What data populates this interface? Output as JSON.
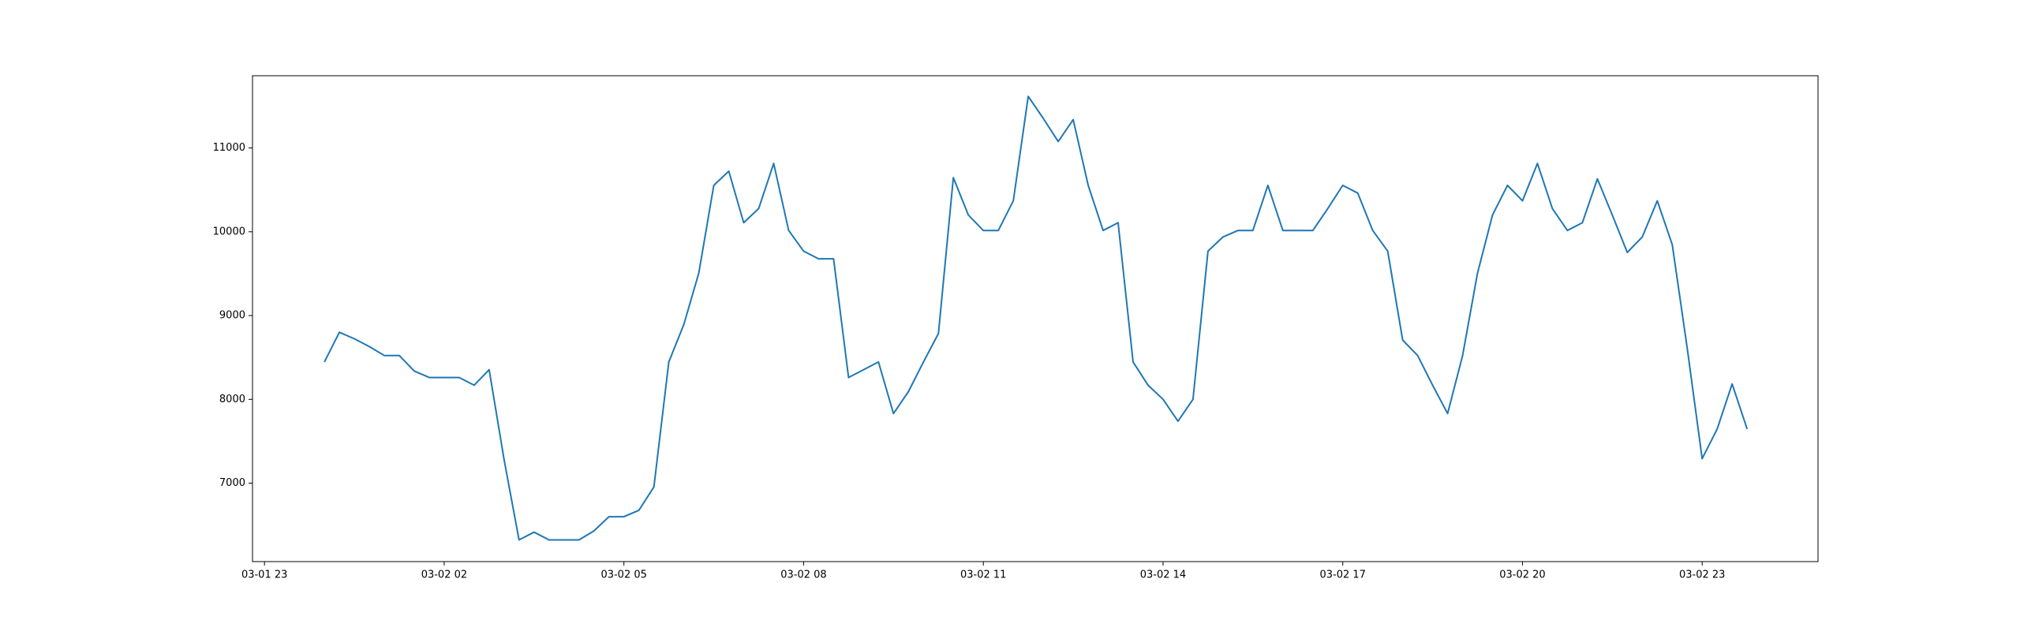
{
  "chart_data": {
    "type": "line",
    "x": [
      "03-02 00:00",
      "03-02 00:15",
      "03-02 00:30",
      "03-02 00:45",
      "03-02 01:00",
      "03-02 01:15",
      "03-02 01:30",
      "03-02 01:45",
      "03-02 02:00",
      "03-02 02:15",
      "03-02 02:30",
      "03-02 02:45",
      "03-02 03:00",
      "03-02 03:15",
      "03-02 03:30",
      "03-02 03:45",
      "03-02 04:00",
      "03-02 04:15",
      "03-02 04:30",
      "03-02 04:45",
      "03-02 05:00",
      "03-02 05:15",
      "03-02 05:30",
      "03-02 05:45",
      "03-02 06:00",
      "03-02 06:15",
      "03-02 06:30",
      "03-02 06:45",
      "03-02 07:00",
      "03-02 07:15",
      "03-02 07:30",
      "03-02 07:45",
      "03-02 08:00",
      "03-02 08:15",
      "03-02 08:30",
      "03-02 08:45",
      "03-02 09:00",
      "03-02 09:15",
      "03-02 09:30",
      "03-02 09:45",
      "03-02 10:00",
      "03-02 10:15",
      "03-02 10:30",
      "03-02 10:45",
      "03-02 11:00",
      "03-02 11:15",
      "03-02 11:30",
      "03-02 11:45",
      "03-02 12:00",
      "03-02 12:15",
      "03-02 12:30",
      "03-02 12:45",
      "03-02 13:00",
      "03-02 13:15",
      "03-02 13:30",
      "03-02 13:45",
      "03-02 14:00",
      "03-02 14:15",
      "03-02 14:30",
      "03-02 14:45",
      "03-02 15:00",
      "03-02 15:15",
      "03-02 15:30",
      "03-02 15:45",
      "03-02 16:00",
      "03-02 16:15",
      "03-02 16:30",
      "03-02 16:45",
      "03-02 17:00",
      "03-02 17:15",
      "03-02 17:30",
      "03-02 17:45",
      "03-02 18:00",
      "03-02 18:15",
      "03-02 18:30",
      "03-02 18:45",
      "03-02 19:00",
      "03-02 19:15",
      "03-02 19:30",
      "03-02 19:45",
      "03-02 20:00",
      "03-02 20:15",
      "03-02 20:30",
      "03-02 20:45",
      "03-02 21:00",
      "03-02 21:15",
      "03-02 21:30",
      "03-02 21:45",
      "03-02 22:00",
      "03-02 22:15",
      "03-02 22:30",
      "03-02 22:45",
      "03-02 23:00",
      "03-02 23:15",
      "03-02 23:30",
      "03-02 23:45"
    ],
    "series": [
      {
        "color": "#1f77b4",
        "values": [
          8446,
          8800,
          8723,
          8630,
          8523,
          8523,
          8338,
          8261,
          8261,
          8261,
          8169,
          8354,
          7277,
          6323,
          6415,
          6323,
          6323,
          6323,
          6430,
          6600,
          6600,
          6677,
          6954,
          8446,
          8892,
          9507,
          10554,
          10723,
          10108,
          10277,
          10815,
          10015,
          9769,
          9677,
          9677,
          8261,
          8354,
          8446,
          7831,
          8092,
          8446,
          8785,
          10646,
          10200,
          10015,
          10015,
          10369,
          11615,
          11354,
          11077,
          11338,
          10554,
          10015,
          10108,
          8446,
          8169,
          8000,
          7738,
          8000,
          9769,
          9938,
          10015,
          10015,
          10554,
          10015,
          10015,
          10015,
          10277,
          10554,
          10461,
          10015,
          9769,
          8708,
          8523,
          8169,
          7831,
          8523,
          9507,
          10200,
          10554,
          10369,
          10815,
          10277,
          10015,
          10108,
          10631,
          10200,
          9754,
          9938,
          10369,
          9846,
          8615,
          7292,
          7646,
          8184,
          7646
        ]
      }
    ],
    "xlim": [
      "03-01 22:48",
      "03-03 00:56"
    ],
    "xticks": [
      "03-01 23",
      "03-02 02",
      "03-02 05",
      "03-02 08",
      "03-02 11",
      "03-02 14",
      "03-02 17",
      "03-02 20",
      "03-02 23"
    ],
    "ylim": [
      6064,
      11862
    ],
    "yticks": [
      7000,
      8000,
      9000,
      10000,
      11000
    ]
  }
}
